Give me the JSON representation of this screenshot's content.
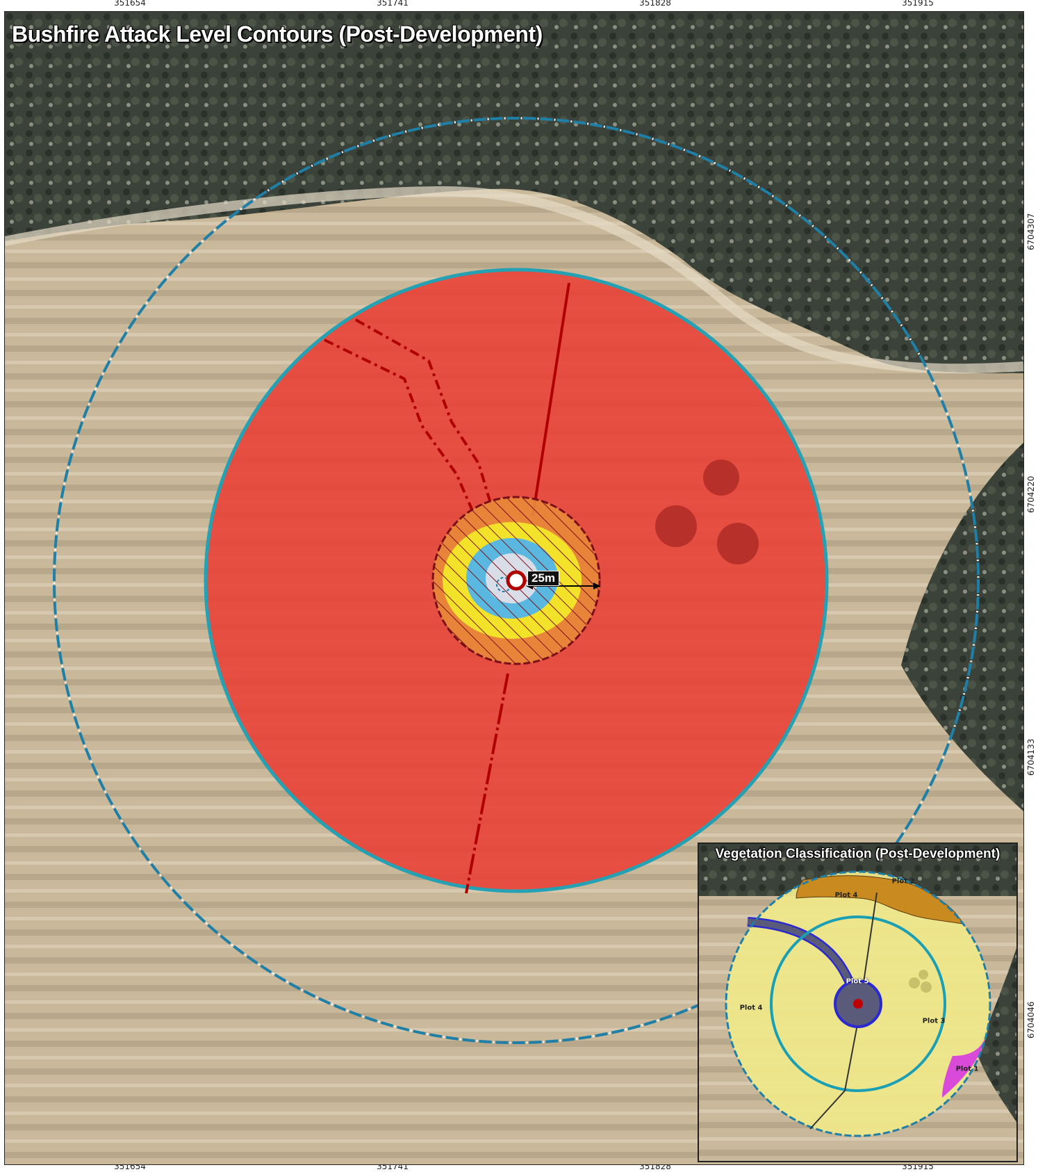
{
  "map": {
    "title": "Bushfire Attack Level Contours (Post-Development)",
    "scale_label": "25m",
    "easting_labels": [
      "351654",
      "351741",
      "351828",
      "351915"
    ],
    "northing_labels": [
      "6704307",
      "6704220",
      "6704133",
      "6704046"
    ]
  },
  "inset": {
    "title": "Vegetation Classification (Post-Development)",
    "plots": [
      "Plot 2",
      "Plot 4",
      "Plot 5",
      "Plot 4",
      "Plot 3",
      "Plot 1"
    ]
  },
  "colors": {
    "bal_fz": "#e8463a",
    "bal_40": "#e88a3a",
    "bal_29": "#f2e32a",
    "bal_19": "#5ab8e0",
    "bal_12_5": "#d9dde8",
    "assessment_circle": "#1a9fb5",
    "boundary_dashed": "#1f7fa6",
    "road_line": "#b00000",
    "plot_1": "#d94ad9",
    "plot_2": "#c98a1f",
    "plot_3_4": "#efe78a",
    "plot_5": "#5a5a7a"
  }
}
